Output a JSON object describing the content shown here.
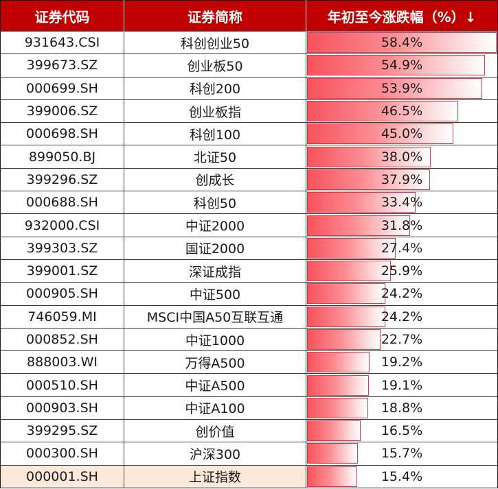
{
  "headers": [
    "证券代码",
    "证券简称",
    "年初至今涨跌幅（%）↓"
  ],
  "rows": [
    {
      "code": "931643.CSI",
      "name": "科创创业50",
      "pct": 58.4,
      "pct_label": "58.4%"
    },
    {
      "code": "399673.SZ",
      "name": "创业板50",
      "pct": 54.9,
      "pct_label": "54.9%"
    },
    {
      "code": "000699.SH",
      "name": "科创200",
      "pct": 53.9,
      "pct_label": "53.9%"
    },
    {
      "code": "399006.SZ",
      "name": "创业板指",
      "pct": 46.5,
      "pct_label": "46.5%"
    },
    {
      "code": "000698.SH",
      "name": "科创100",
      "pct": 45.0,
      "pct_label": "45.0%"
    },
    {
      "code": "899050.BJ",
      "name": "北证50",
      "pct": 38.0,
      "pct_label": "38.0%"
    },
    {
      "code": "399296.SZ",
      "name": "创成长",
      "pct": 37.9,
      "pct_label": "37.9%"
    },
    {
      "code": "000688.SH",
      "name": "科创50",
      "pct": 33.4,
      "pct_label": "33.4%"
    },
    {
      "code": "932000.CSI",
      "name": "中证2000",
      "pct": 31.8,
      "pct_label": "31.8%"
    },
    {
      "code": "399303.SZ",
      "name": "国证2000",
      "pct": 27.4,
      "pct_label": "27.4%"
    },
    {
      "code": "399001.SZ",
      "name": "深证成指",
      "pct": 25.9,
      "pct_label": "25.9%"
    },
    {
      "code": "000905.SH",
      "name": "中证500",
      "pct": 24.2,
      "pct_label": "24.2%"
    },
    {
      "code": "746059.MI",
      "name": "MSCI中国A50互联互通",
      "pct": 24.2,
      "pct_label": "24.2%"
    },
    {
      "code": "000852.SH",
      "name": "中证1000",
      "pct": 22.7,
      "pct_label": "22.7%"
    },
    {
      "code": "888003.WI",
      "name": "万得A500",
      "pct": 19.2,
      "pct_label": "19.2%"
    },
    {
      "code": "000510.SH",
      "name": "中证A500",
      "pct": 19.1,
      "pct_label": "19.1%"
    },
    {
      "code": "000903.SH",
      "name": "中证A100",
      "pct": 18.8,
      "pct_label": "18.8%"
    },
    {
      "code": "399295.SZ",
      "name": "创价值",
      "pct": 16.5,
      "pct_label": "16.5%"
    },
    {
      "code": "000300.SH",
      "name": "沪深300",
      "pct": 15.7,
      "pct_label": "15.7%"
    },
    {
      "code": "000001.SH",
      "name": "上证指数",
      "pct": 15.4,
      "pct_label": "15.4%",
      "highlight": true
    }
  ],
  "colors": {
    "header_bg": "#c00000",
    "bar_start": "#f8525c",
    "bar_border": "#e53843",
    "highlight_row": "#fde9d9"
  }
}
